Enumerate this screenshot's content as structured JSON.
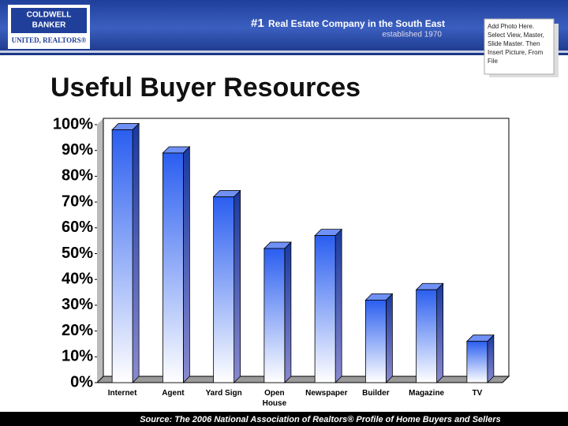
{
  "header": {
    "logo_line1": "COLDWELL",
    "logo_line2": "BANKER",
    "logo_line3": "UNITED, REALTORS®",
    "tagline_number": "#1",
    "tagline": "Real Estate Company in the South East",
    "established": "established 1970",
    "photo_note": "Add Photo Here. Select View, Master, Slide Master. Then Insert Picture, From File"
  },
  "chart_data": {
    "type": "bar",
    "title": "Useful Buyer Resources",
    "categories": [
      "Internet",
      "Agent",
      "Yard Sign",
      "Open House",
      "Newspaper",
      "Builder",
      "Magazine",
      "TV"
    ],
    "values": [
      98,
      89,
      72,
      52,
      57,
      32,
      36,
      16
    ],
    "color": "#2a5ef0",
    "ylim": [
      0,
      100
    ],
    "yticks": [
      {
        "value": 0,
        "label": "0%"
      },
      {
        "value": 10,
        "label": "10%"
      },
      {
        "value": 20,
        "label": "20%"
      },
      {
        "value": 30,
        "label": "30%"
      },
      {
        "value": 40,
        "label": "40%"
      },
      {
        "value": 50,
        "label": "50%"
      },
      {
        "value": 60,
        "label": "60%"
      },
      {
        "value": 70,
        "label": "70%"
      },
      {
        "value": 80,
        "label": "80%"
      },
      {
        "value": 90,
        "label": "90%"
      },
      {
        "value": 100,
        "label": "100%"
      }
    ],
    "grid": false
  },
  "footer": {
    "source": "Source: The 2006 National Association of Realtors® Profile of Home Buyers and Sellers"
  }
}
